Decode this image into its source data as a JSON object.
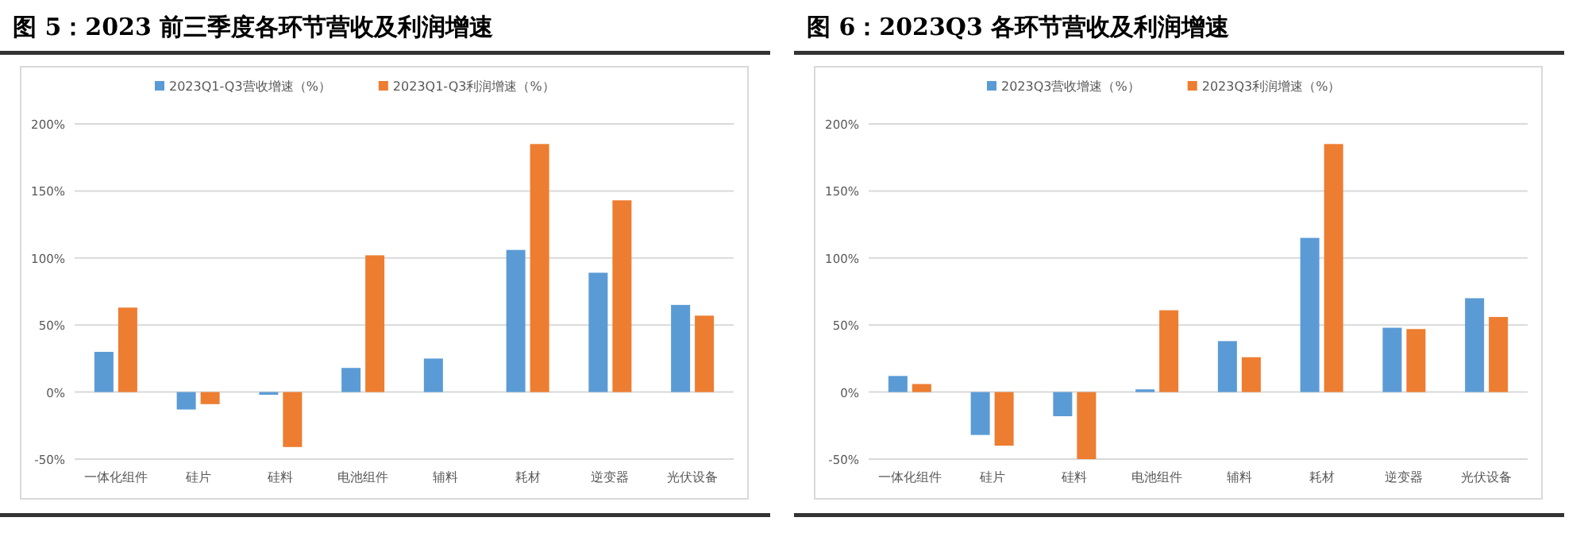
{
  "chart_data": [
    {
      "type": "bar",
      "title": "图 5：2023 前三季度各环节营收及利润增速",
      "categories": [
        "一体化组件",
        "硅片",
        "硅料",
        "电池组件",
        "辅料",
        "耗材",
        "逆变器",
        "光伏设备"
      ],
      "series": [
        {
          "name": "2023Q1-Q3营收增速（%）",
          "color": "#5b9bd5",
          "values": [
            30,
            -13,
            -2,
            18,
            25,
            106,
            89,
            65
          ]
        },
        {
          "name": "2023Q1-Q3利润增速（%）",
          "color": "#ed7d31",
          "values": [
            63,
            -9,
            -41,
            102,
            null,
            185,
            143,
            57
          ]
        }
      ],
      "ylim": [
        -50,
        200
      ],
      "yticks": [
        {
          "value": -50,
          "label": "-50%"
        },
        {
          "value": 0,
          "label": "0%"
        },
        {
          "value": 50,
          "label": "50%"
        },
        {
          "value": 100,
          "label": "100%"
        },
        {
          "value": 150,
          "label": "150%"
        },
        {
          "value": 200,
          "label": "200%"
        }
      ],
      "grid": "y",
      "legend": "top"
    },
    {
      "type": "bar",
      "title": "图 6：2023Q3 各环节营收及利润增速",
      "categories": [
        "一体化组件",
        "硅片",
        "硅料",
        "电池组件",
        "辅料",
        "耗材",
        "逆变器",
        "光伏设备"
      ],
      "series": [
        {
          "name": "2023Q3营收增速（%）",
          "color": "#5b9bd5",
          "values": [
            12,
            -32,
            -18,
            2,
            38,
            115,
            48,
            70
          ]
        },
        {
          "name": "2023Q3利润增速（%）",
          "color": "#ed7d31",
          "values": [
            6,
            -40,
            -50,
            61,
            26,
            185,
            47,
            56
          ]
        }
      ],
      "ylim": [
        -50,
        200
      ],
      "yticks": [
        {
          "value": -50,
          "label": "-50%"
        },
        {
          "value": 0,
          "label": "0%"
        },
        {
          "value": 50,
          "label": "50%"
        },
        {
          "value": 100,
          "label": "100%"
        },
        {
          "value": 150,
          "label": "150%"
        },
        {
          "value": 200,
          "label": "200%"
        }
      ],
      "grid": "y",
      "legend": "top"
    }
  ]
}
